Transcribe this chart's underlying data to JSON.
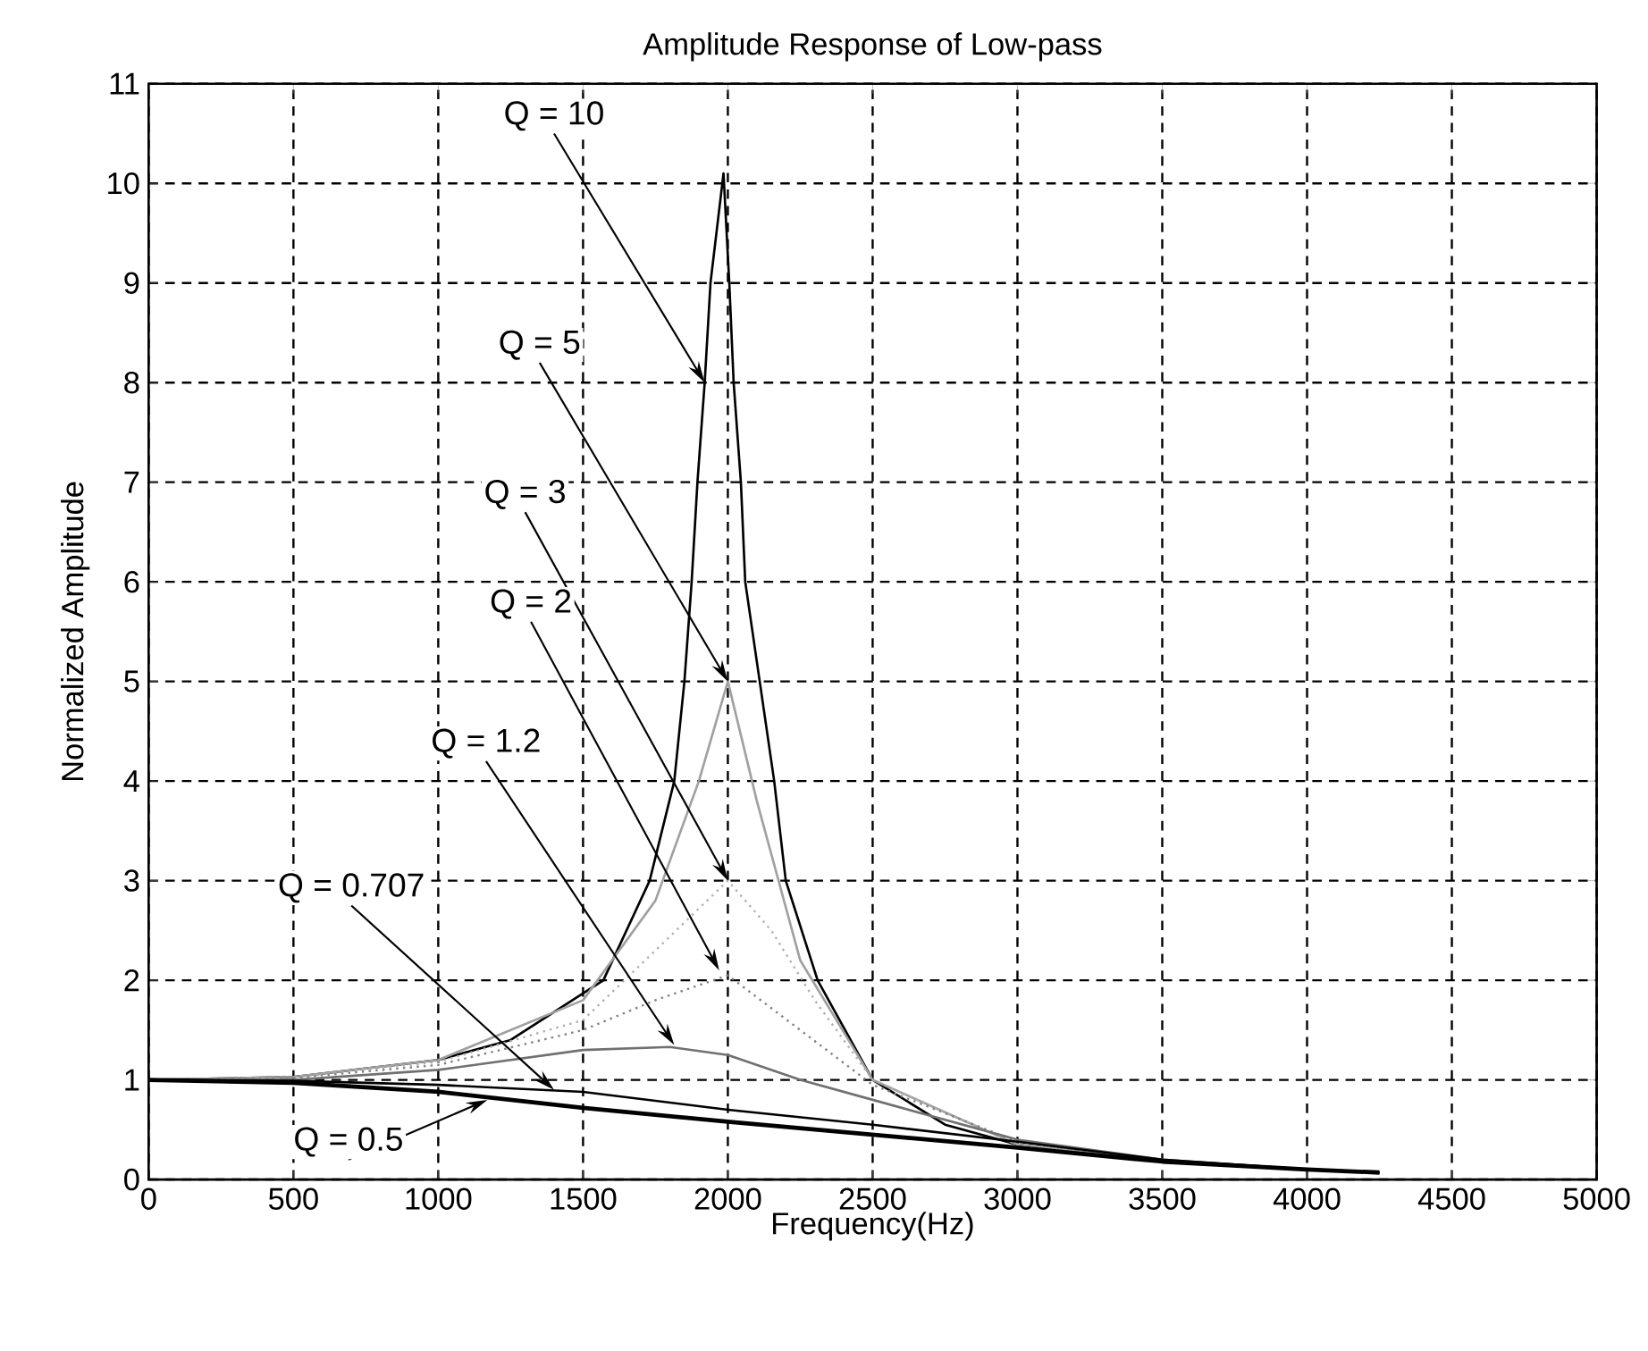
{
  "chart_data": {
    "type": "line",
    "title": "Amplitude Response of Low-pass",
    "xlabel": "Frequency(Hz)",
    "ylabel": "Normalized Amplitude",
    "xlim": [
      0,
      5000
    ],
    "ylim": [
      0,
      11
    ],
    "xticks": [
      0,
      500,
      1000,
      1500,
      2000,
      2500,
      3000,
      3500,
      4000,
      4500,
      5000
    ],
    "yticks": [
      0,
      1,
      2,
      3,
      4,
      5,
      6,
      7,
      8,
      9,
      10,
      11
    ],
    "grid": true,
    "marker": "none",
    "series": [
      {
        "color": "#000000",
        "line_style": "solid",
        "x": [
          0,
          500,
          1000,
          1250,
          1570,
          1730,
          1815,
          1850,
          1875,
          1895,
          1920,
          1940,
          1985,
          2005,
          2020,
          2045,
          2060,
          2110,
          2160,
          2200,
          2310,
          2500,
          2750,
          3000,
          3500,
          4000,
          4250
        ],
        "values": [
          1,
          1.03,
          1.2,
          1.4,
          2,
          3,
          4,
          5,
          6,
          7,
          8,
          9,
          10.1,
          9,
          8,
          7,
          6,
          5,
          4,
          3,
          2,
          1,
          0.55,
          0.35,
          0.18,
          0.1,
          0.07
        ]
      },
      {
        "color": "#a0a0a0",
        "line_style": "solid",
        "x": [
          0,
          500,
          1000,
          1500,
          1750,
          1900,
          2000,
          2100,
          2250,
          2500,
          3000,
          3500,
          4000,
          4250
        ],
        "values": [
          1,
          1.03,
          1.2,
          1.8,
          2.8,
          4,
          5,
          3.8,
          2.2,
          1,
          0.35,
          0.18,
          0.1,
          0.07
        ]
      },
      {
        "color": "#b0b0b0",
        "line_style": "dotted",
        "x": [
          0,
          500,
          1000,
          1500,
          1750,
          2000,
          2150,
          2300,
          2500,
          3000,
          3500,
          4000,
          4250
        ],
        "values": [
          1,
          1.03,
          1.18,
          1.6,
          2.3,
          3,
          2.5,
          1.8,
          1,
          0.35,
          0.18,
          0.1,
          0.07
        ]
      },
      {
        "color": "#808080",
        "line_style": "dotted",
        "x": [
          0,
          500,
          1000,
          1500,
          1750,
          2000,
          2250,
          2500,
          3000,
          3500,
          4000,
          4250
        ],
        "values": [
          1,
          1.02,
          1.15,
          1.5,
          1.8,
          2.05,
          1.5,
          0.95,
          0.38,
          0.18,
          0.1,
          0.07
        ]
      },
      {
        "color": "#707070",
        "line_style": "solid",
        "x": [
          0,
          500,
          1000,
          1500,
          1800,
          2000,
          2250,
          2500,
          3000,
          3500,
          4000,
          4250
        ],
        "values": [
          1,
          1,
          1.1,
          1.3,
          1.33,
          1.25,
          1,
          0.8,
          0.4,
          0.2,
          0.1,
          0.07
        ]
      },
      {
        "color": "#000000",
        "line_style": "solid",
        "x": [
          0,
          500,
          1000,
          1500,
          2000,
          2500,
          3000,
          3500,
          4000,
          4250
        ],
        "values": [
          1,
          0.99,
          0.95,
          0.88,
          0.7,
          0.55,
          0.38,
          0.2,
          0.1,
          0.07
        ]
      },
      {
        "color": "#000000",
        "line_style": "solid",
        "x": [
          0,
          500,
          1000,
          1500,
          2000,
          2500,
          3000,
          3500,
          4000,
          4250
        ],
        "values": [
          1,
          0.97,
          0.88,
          0.72,
          0.58,
          0.45,
          0.32,
          0.18,
          0.1,
          0.07
        ]
      }
    ],
    "annotations": [
      {
        "text": "Q = 10",
        "x": 1920,
        "y": 8
      },
      {
        "text": "Q = 5",
        "x": 2000,
        "y": 5
      },
      {
        "text": "Q = 3",
        "x": 2000,
        "y": 3
      },
      {
        "text": "Q = 2",
        "x": 1970,
        "y": 2.1
      },
      {
        "text": "Q = 1.2",
        "x": 1815,
        "y": 1.35
      },
      {
        "text": "Q = 0.707",
        "x": 1400,
        "y": 0.9
      },
      {
        "text": "Q = 0.5",
        "x": 1170,
        "y": 0.8
      }
    ]
  }
}
